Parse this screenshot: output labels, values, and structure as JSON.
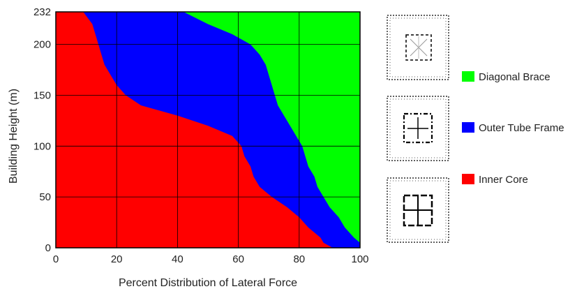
{
  "chart_data": {
    "type": "area",
    "title": "",
    "xlabel": "Percent Distribution of Lateral Force",
    "ylabel": "Building Height (m)",
    "xlim": [
      0,
      100
    ],
    "ylim": [
      0,
      232
    ],
    "x_ticks": [
      0,
      20,
      40,
      60,
      80,
      100
    ],
    "y_ticks": [
      0,
      50,
      100,
      150,
      200,
      232
    ],
    "grid": true,
    "legend_position": "right",
    "series": [
      {
        "name": "Inner Core",
        "color": "#ff0000",
        "boundary_height": [
          0,
          5,
          10,
          20,
          30,
          40,
          50,
          60,
          70,
          80,
          90,
          100,
          110,
          120,
          130,
          140,
          150,
          160,
          170,
          180,
          190,
          200,
          210,
          220,
          232
        ],
        "boundary_percent": [
          91,
          88,
          87,
          83,
          80,
          76,
          71,
          67,
          65,
          64,
          62,
          61,
          58,
          50,
          40,
          28,
          23,
          20,
          18,
          16,
          15,
          14,
          13,
          12,
          9
        ]
      },
      {
        "name": "Outer Tube Frame",
        "color": "#0000ff",
        "boundary_height": [
          0,
          5,
          10,
          20,
          30,
          40,
          50,
          60,
          70,
          80,
          90,
          100,
          110,
          120,
          130,
          140,
          150,
          160,
          170,
          180,
          190,
          200,
          210,
          220,
          232
        ],
        "boundary_percent": [
          100,
          100,
          98,
          95,
          93,
          90,
          88,
          86,
          85,
          83,
          82,
          81,
          79,
          77,
          75,
          73,
          72,
          71,
          70,
          69,
          67,
          64,
          58,
          50,
          42
        ]
      },
      {
        "name": "Diagonal Brace",
        "color": "#00ff00",
        "boundary_height": [],
        "boundary_percent": []
      }
    ],
    "legend": [
      {
        "label": "Diagonal Brace",
        "color": "#00ff00"
      },
      {
        "label": "Outer Tube Frame",
        "color": "#0000ff"
      },
      {
        "label": "Inner Core",
        "color": "#ff0000"
      }
    ]
  },
  "plan_icons": [
    "diagonal-brace-plan-icon",
    "outer-tube-frame-plan-icon",
    "inner-core-plan-icon"
  ]
}
